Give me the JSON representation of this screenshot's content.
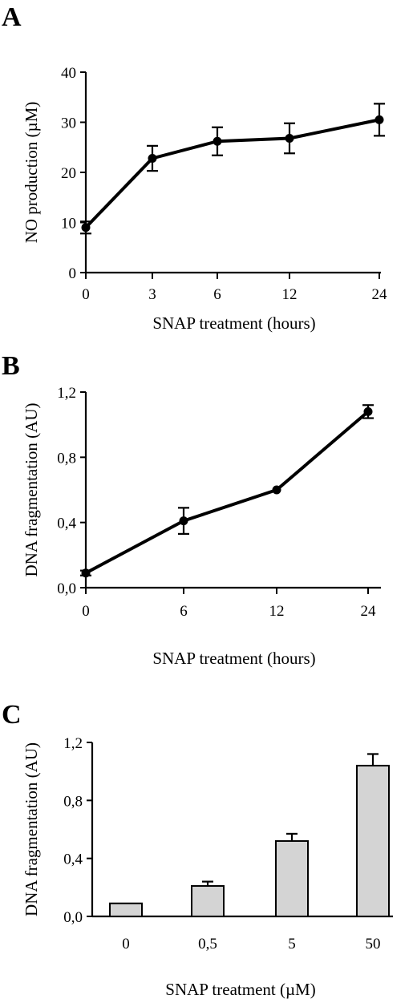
{
  "figure": {
    "panels": [
      "A",
      "B",
      "C"
    ]
  },
  "chart_data": [
    {
      "type": "line",
      "panel": "A",
      "categories": [
        "0",
        "3",
        "6",
        "12",
        "24"
      ],
      "values": [
        9,
        22.8,
        26.2,
        26.8,
        30.5
      ],
      "errors": [
        1.2,
        2.5,
        2.8,
        3.0,
        3.2
      ],
      "ylabel": "NO production (µM)",
      "xlabel": "SNAP treatment (hours)",
      "ylim": [
        0,
        40
      ],
      "yticks": [
        "0",
        "10",
        "20",
        "30",
        "40"
      ],
      "grid": false
    },
    {
      "type": "line",
      "panel": "B",
      "categories": [
        "0",
        "6",
        "12",
        "24"
      ],
      "values": [
        0.09,
        0.41,
        0.6,
        1.08
      ],
      "errors": [
        0.015,
        0.08,
        0.0,
        0.04
      ],
      "ylabel": "DNA fragmentation (AU)",
      "xlabel": "SNAP treatment (hours)",
      "ylim": [
        0,
        1.2
      ],
      "yticks": [
        "0,0",
        "0,4",
        "0,8",
        "1,2"
      ],
      "grid": false
    },
    {
      "type": "bar",
      "panel": "C",
      "categories": [
        "0",
        "0,5",
        "5",
        "50"
      ],
      "values": [
        0.09,
        0.21,
        0.52,
        1.04
      ],
      "errors": [
        0.0,
        0.03,
        0.05,
        0.08
      ],
      "ylabel": "DNA fragmentation (AU)",
      "xlabel": "SNAP treatment (µM)",
      "ylim": [
        0,
        1.2
      ],
      "yticks": [
        "0,0",
        "0,4",
        "0,8",
        "1,2"
      ],
      "bar_color": "#d4d4d4",
      "grid": false
    }
  ]
}
